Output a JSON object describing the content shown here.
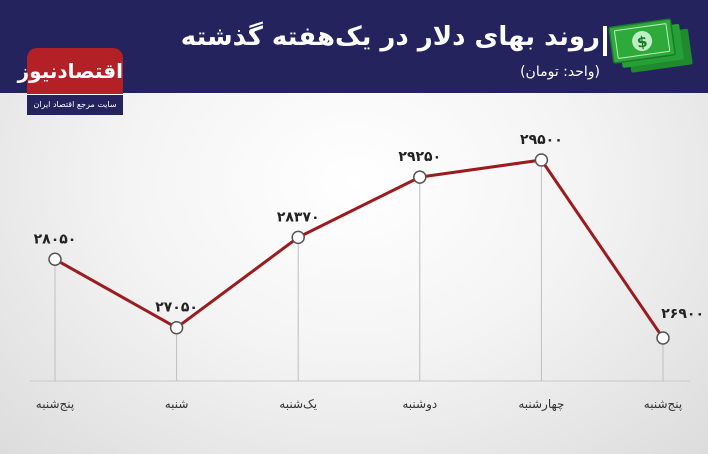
{
  "header": {
    "title": "روند بهای دلار در یک‌هفته گذشته",
    "subtitle": "(واحد: تومان)"
  },
  "logo": {
    "name": "اقتصادنیوز",
    "tagline": "سایت مرجع اقتصاد ایران"
  },
  "colors": {
    "header_bg": "#24235e",
    "line": "#9b1c1f",
    "logo_red": "#b32025",
    "money_green": "#2eaa3b"
  },
  "chart_data": {
    "type": "line",
    "categories": [
      "پنج‌شنبه",
      "شنبه",
      "یک‌شنبه",
      "دوشنبه",
      "چهارشنبه",
      "پنج‌شنبه"
    ],
    "values": [
      28050,
      27050,
      28370,
      29250,
      29500,
      26900
    ],
    "value_labels": [
      "۲۸۰۵۰",
      "۲۷۰۵۰",
      "۲۸۳۷۰",
      "۲۹۲۵۰",
      "۲۹۵۰۰",
      "۲۶۹۰۰"
    ],
    "title": "روند بهای دلار در یک‌هفته گذشته",
    "unit": "تومان",
    "xlabel": "",
    "ylabel": "",
    "ylim": [
      26700,
      29700
    ],
    "grid": false,
    "legend": "none"
  }
}
